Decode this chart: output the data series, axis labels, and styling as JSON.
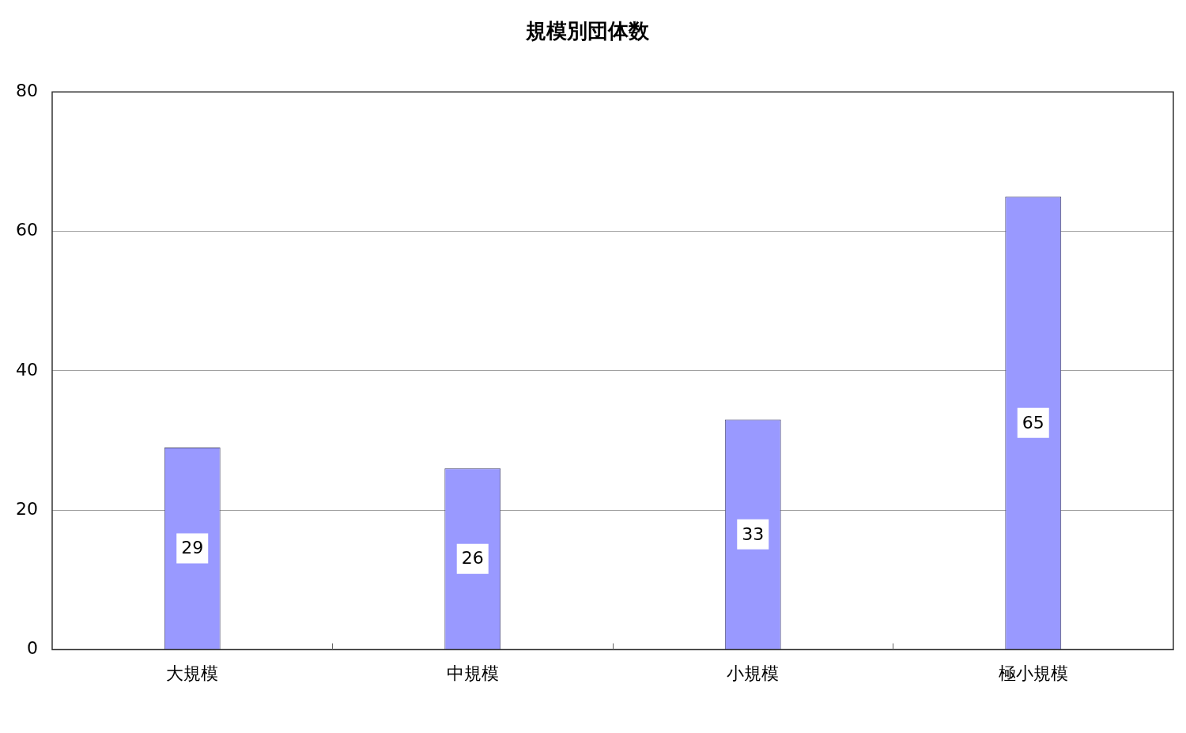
{
  "chart_data": {
    "type": "bar",
    "title": "規模別団体数",
    "categories": [
      "大規模",
      "中規模",
      "小規模",
      "極小規模"
    ],
    "values": [
      29,
      26,
      33,
      65
    ],
    "color": "#9999ff",
    "ylim": [
      0,
      80
    ],
    "yticks": [
      0,
      20,
      40,
      60,
      80
    ],
    "grid": "y",
    "data_labels": true
  }
}
